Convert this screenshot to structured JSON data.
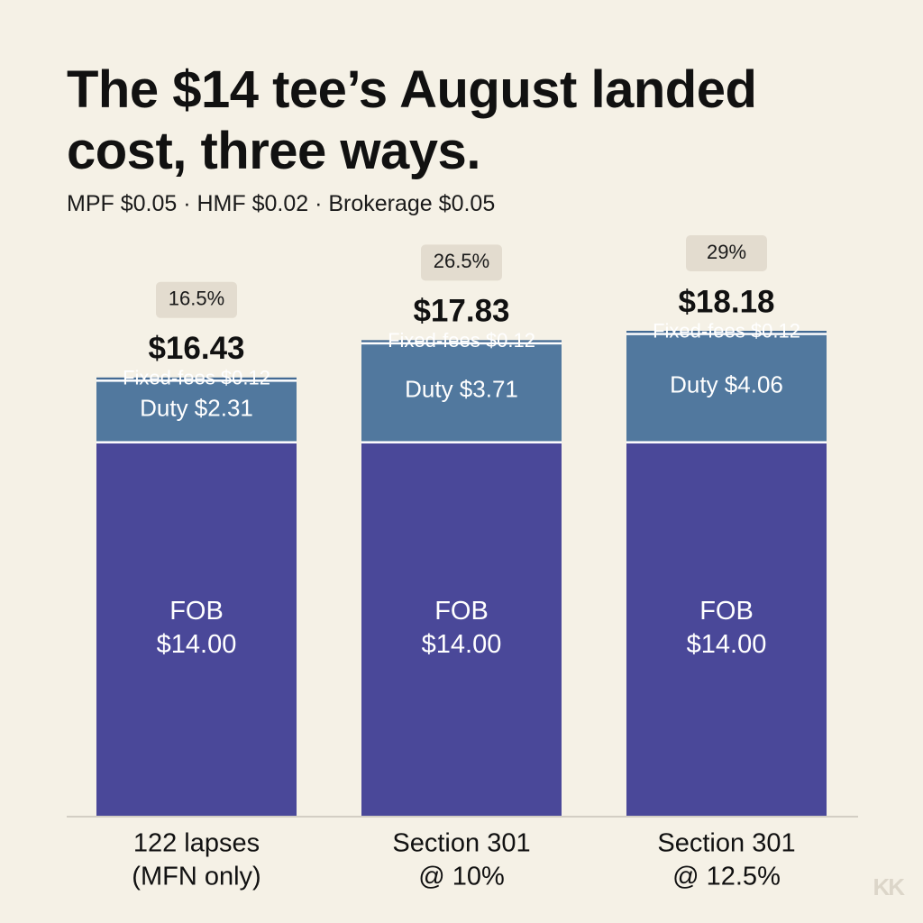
{
  "title_line1": "The $14 tee’s August landed",
  "title_line2": "cost, three ways.",
  "subtitle": "MPF $0.05 · HMF $0.02 · Brokerage $0.05",
  "logo": "KK",
  "colors": {
    "background": "#f5f1e6",
    "fob": "#4a4899",
    "duty": "#51789e",
    "fixed_fees": "#436a94",
    "pct_badge": "#e3dccf",
    "baseline": "#c8c3b8"
  },
  "chart_data": {
    "type": "bar",
    "stacked": true,
    "categories": [
      [
        "122 lapses",
        "(MFN only)"
      ],
      [
        "Section 301",
        "@ 10%"
      ],
      [
        "Section 301",
        "@ 12.5%"
      ]
    ],
    "series": [
      {
        "key": "fob",
        "values": [
          14.0,
          14.0,
          14.0
        ],
        "labels": [
          [
            "FOB",
            "$14.00"
          ],
          [
            "FOB",
            "$14.00"
          ],
          [
            "FOB",
            "$14.00"
          ]
        ]
      },
      {
        "key": "duty",
        "values": [
          2.31,
          3.71,
          4.06
        ],
        "labels": [
          [
            "Duty $2.31"
          ],
          [
            "Duty $3.71"
          ],
          [
            "Duty $4.06"
          ]
        ]
      },
      {
        "key": "fixed_fees",
        "values": [
          0.12,
          0.12,
          0.12
        ],
        "labels": [
          [
            "Fixed-fees $0.12"
          ],
          [
            "Fixed-fees $0.12"
          ],
          [
            "Fixed-fees $0.12"
          ]
        ]
      }
    ],
    "totals": [
      "$16.43",
      "$17.83",
      "$18.18"
    ],
    "duty_rates": [
      "16.5%",
      "26.5%",
      "29%"
    ],
    "ylim": [
      0,
      18.18
    ],
    "grid": false,
    "legend": "none"
  }
}
